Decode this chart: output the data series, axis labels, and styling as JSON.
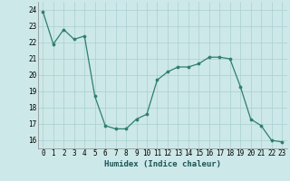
{
  "x": [
    0,
    1,
    2,
    3,
    4,
    5,
    6,
    7,
    8,
    9,
    10,
    11,
    12,
    13,
    14,
    15,
    16,
    17,
    18,
    19,
    20,
    21,
    22,
    23
  ],
  "y": [
    23.9,
    21.9,
    22.8,
    22.2,
    22.4,
    18.7,
    16.9,
    16.7,
    16.7,
    17.3,
    17.6,
    19.7,
    20.2,
    20.5,
    20.5,
    20.7,
    21.1,
    21.1,
    21.0,
    19.3,
    17.3,
    16.9,
    16.0,
    15.9
  ],
  "xlabel": "Humidex (Indice chaleur)",
  "xlim": [
    -0.5,
    23.5
  ],
  "ylim": [
    15.5,
    24.5
  ],
  "yticks": [
    16,
    17,
    18,
    19,
    20,
    21,
    22,
    23,
    24
  ],
  "xticks": [
    0,
    1,
    2,
    3,
    4,
    5,
    6,
    7,
    8,
    9,
    10,
    11,
    12,
    13,
    14,
    15,
    16,
    17,
    18,
    19,
    20,
    21,
    22,
    23
  ],
  "line_color": "#2d7f6e",
  "bg_color": "#cde8e8",
  "grid_color": "#aacfcf",
  "label_fontsize": 6.5,
  "tick_fontsize": 5.5
}
